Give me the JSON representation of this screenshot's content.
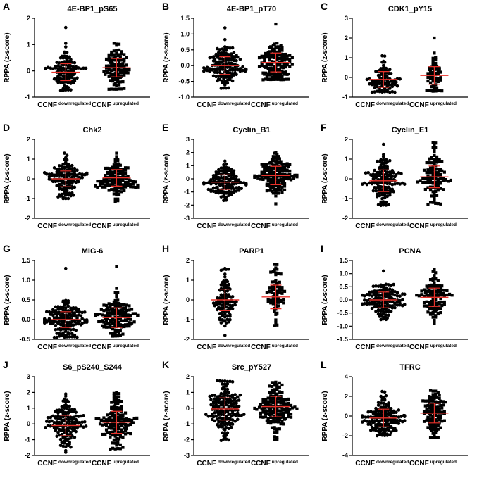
{
  "chart_data": [
    {
      "panel": "A",
      "title": "4E-BP1_pS65",
      "type": "scatter",
      "ylabel": "RPPA (z-score)",
      "ylim": [
        -1,
        2
      ],
      "yticks": [
        -1,
        0,
        1,
        2
      ],
      "categories": [
        {
          "main": "CCNF",
          "sub": "downregulated"
        },
        {
          "main": "CCNF",
          "sub": "upregulated"
        }
      ],
      "series": [
        {
          "marker": "circle",
          "n": 110,
          "min": -0.75,
          "max": 1.65,
          "mean": -0.05,
          "sd": 0.32
        },
        {
          "marker": "square",
          "n": 110,
          "min": -0.7,
          "max": 1.05,
          "mean": 0.12,
          "sd": 0.35
        }
      ]
    },
    {
      "panel": "B",
      "title": "4E-BP1_pT70",
      "type": "scatter",
      "ylabel": "RPPA (z-score)",
      "ylim": [
        -1,
        1.5
      ],
      "yticks": [
        -1.0,
        -0.5,
        0.0,
        0.5,
        1.0,
        1.5
      ],
      "categories": [
        {
          "main": "CCNF",
          "sub": "downregulated"
        },
        {
          "main": "CCNF",
          "sub": "upregulated"
        }
      ],
      "series": [
        {
          "marker": "circle",
          "n": 150,
          "min": -0.72,
          "max": 1.2,
          "mean": 0.0,
          "sd": 0.28
        },
        {
          "marker": "square",
          "n": 140,
          "min": -0.45,
          "max": 1.32,
          "mean": 0.1,
          "sd": 0.3
        }
      ]
    },
    {
      "panel": "C",
      "title": "CDK1_pY15",
      "type": "scatter",
      "ylabel": "RPPA (z-score)",
      "ylim": [
        -1,
        3
      ],
      "yticks": [
        -1,
        0,
        1,
        2,
        3
      ],
      "categories": [
        {
          "main": "CCNF",
          "sub": "downregulated"
        },
        {
          "main": "CCNF",
          "sub": "upregulated"
        }
      ],
      "series": [
        {
          "marker": "circle",
          "n": 90,
          "min": -0.75,
          "max": 1.1,
          "mean": -0.1,
          "sd": 0.4
        },
        {
          "marker": "square",
          "n": 60,
          "min": -0.7,
          "max": 2.0,
          "mean": 0.1,
          "sd": 0.45
        }
      ]
    },
    {
      "panel": "D",
      "title": "Chk2",
      "type": "scatter",
      "ylabel": "RPPA (z-score)",
      "ylim": [
        -2,
        2
      ],
      "yticks": [
        -2,
        -1,
        0,
        1,
        2
      ],
      "categories": [
        {
          "main": "CCNF",
          "sub": "downregulated"
        },
        {
          "main": "CCNF",
          "sub": "upregulated"
        }
      ],
      "series": [
        {
          "marker": "circle",
          "n": 130,
          "min": -1.0,
          "max": 1.3,
          "mean": 0.0,
          "sd": 0.4
        },
        {
          "marker": "square",
          "n": 130,
          "min": -1.15,
          "max": 1.3,
          "mean": 0.05,
          "sd": 0.42
        }
      ]
    },
    {
      "panel": "E",
      "title": "Cyclin_B1",
      "type": "scatter",
      "ylabel": "RPPA (z-score)",
      "ylim": [
        -3,
        3
      ],
      "yticks": [
        -3,
        -2,
        -1,
        0,
        1,
        2,
        3
      ],
      "categories": [
        {
          "main": "CCNF",
          "sub": "downregulated"
        },
        {
          "main": "CCNF",
          "sub": "upregulated"
        }
      ],
      "series": [
        {
          "marker": "circle",
          "n": 130,
          "min": -1.65,
          "max": 1.35,
          "mean": -0.25,
          "sd": 0.55
        },
        {
          "marker": "square",
          "n": 150,
          "min": -1.9,
          "max": 2.0,
          "mean": 0.25,
          "sd": 0.7
        }
      ]
    },
    {
      "panel": "F",
      "title": "Cyclin_E1",
      "type": "scatter",
      "ylabel": "RPPA (z-score)",
      "ylim": [
        -2,
        2
      ],
      "yticks": [
        -2,
        -1,
        0,
        1,
        2
      ],
      "categories": [
        {
          "main": "CCNF",
          "sub": "downregulated"
        },
        {
          "main": "CCNF",
          "sub": "upregulated"
        }
      ],
      "series": [
        {
          "marker": "circle",
          "n": 140,
          "min": -1.35,
          "max": 1.75,
          "mean": -0.1,
          "sd": 0.55
        },
        {
          "marker": "square",
          "n": 110,
          "min": -1.3,
          "max": 1.85,
          "mean": 0.1,
          "sd": 0.55
        }
      ]
    },
    {
      "panel": "G",
      "title": "MIG-6",
      "type": "scatter",
      "ylabel": "RPPA (z-score)",
      "ylim": [
        -0.5,
        1.5
      ],
      "yticks": [
        -0.5,
        0.0,
        0.5,
        1.0,
        1.5
      ],
      "categories": [
        {
          "main": "CCNF",
          "sub": "downregulated"
        },
        {
          "main": "CCNF",
          "sub": "upregulated"
        }
      ],
      "series": [
        {
          "marker": "circle",
          "n": 160,
          "min": -0.45,
          "max": 1.3,
          "mean": 0.0,
          "sd": 0.2
        },
        {
          "marker": "square",
          "n": 150,
          "min": -0.42,
          "max": 1.35,
          "mean": 0.05,
          "sd": 0.25
        }
      ]
    },
    {
      "panel": "H",
      "title": "PARP1",
      "type": "scatter",
      "ylabel": "RPPA (z-score)",
      "ylim": [
        -2,
        2
      ],
      "yticks": [
        -2,
        -1,
        0,
        1,
        2
      ],
      "categories": [
        {
          "main": "CCNF",
          "sub": "downregulated"
        },
        {
          "main": "CCNF",
          "sub": "upregulated"
        }
      ],
      "series": [
        {
          "marker": "circle",
          "n": 100,
          "min": -1.8,
          "max": 1.6,
          "mean": 0.0,
          "sd": 0.55
        },
        {
          "marker": "square",
          "n": 70,
          "min": -1.3,
          "max": 1.8,
          "mean": 0.15,
          "sd": 0.6
        }
      ]
    },
    {
      "panel": "I",
      "title": "PCNA",
      "type": "scatter",
      "ylabel": "RPPA (z-score)",
      "ylim": [
        -1.5,
        1.5
      ],
      "yticks": [
        -1.5,
        -1.0,
        -0.5,
        0.0,
        0.5,
        1.0,
        1.5
      ],
      "categories": [
        {
          "main": "CCNF",
          "sub": "downregulated"
        },
        {
          "main": "CCNF",
          "sub": "upregulated"
        }
      ],
      "series": [
        {
          "marker": "circle",
          "n": 140,
          "min": -0.75,
          "max": 1.1,
          "mean": 0.0,
          "sd": 0.3
        },
        {
          "marker": "square",
          "n": 110,
          "min": -0.9,
          "max": 1.15,
          "mean": 0.1,
          "sd": 0.35
        }
      ]
    },
    {
      "panel": "J",
      "title": "S6_pS240_S244",
      "type": "scatter",
      "ylabel": "RPPA (z-score)",
      "ylim": [
        -2,
        3
      ],
      "yticks": [
        -2,
        -1,
        0,
        1,
        2,
        3
      ],
      "categories": [
        {
          "main": "CCNF",
          "sub": "downregulated"
        },
        {
          "main": "CCNF",
          "sub": "upregulated"
        }
      ],
      "series": [
        {
          "marker": "circle",
          "n": 150,
          "min": -1.8,
          "max": 1.9,
          "mean": -0.1,
          "sd": 0.65
        },
        {
          "marker": "square",
          "n": 150,
          "min": -1.6,
          "max": 2.0,
          "mean": 0.1,
          "sd": 0.7
        }
      ]
    },
    {
      "panel": "K",
      "title": "Src_pY527",
      "type": "scatter",
      "ylabel": "RPPA (z-score)",
      "ylim": [
        -3,
        2
      ],
      "yticks": [
        -3,
        -2,
        -1,
        0,
        1,
        2
      ],
      "categories": [
        {
          "main": "CCNF",
          "sub": "downregulated"
        },
        {
          "main": "CCNF",
          "sub": "upregulated"
        }
      ],
      "series": [
        {
          "marker": "circle",
          "n": 170,
          "min": -2.05,
          "max": 1.75,
          "mean": -0.05,
          "sd": 0.7
        },
        {
          "marker": "square",
          "n": 160,
          "min": -2.0,
          "max": 1.65,
          "mean": 0.1,
          "sd": 0.65
        }
      ]
    },
    {
      "panel": "L",
      "title": "TFRC",
      "type": "scatter",
      "ylabel": "RPPA (z-score)",
      "ylim": [
        -4,
        4
      ],
      "yticks": [
        -4,
        -2,
        0,
        2,
        4
      ],
      "categories": [
        {
          "main": "CCNF",
          "sub": "downregulated"
        },
        {
          "main": "CCNF",
          "sub": "upregulated"
        }
      ],
      "series": [
        {
          "marker": "circle",
          "n": 150,
          "min": -2.0,
          "max": 2.5,
          "mean": -0.2,
          "sd": 0.9
        },
        {
          "marker": "square",
          "n": 110,
          "min": -2.2,
          "max": 2.6,
          "mean": 0.3,
          "sd": 1.0
        }
      ]
    }
  ],
  "colors": {
    "points": "#000000",
    "error_bars": "#e8322b",
    "axis": "#000000"
  }
}
